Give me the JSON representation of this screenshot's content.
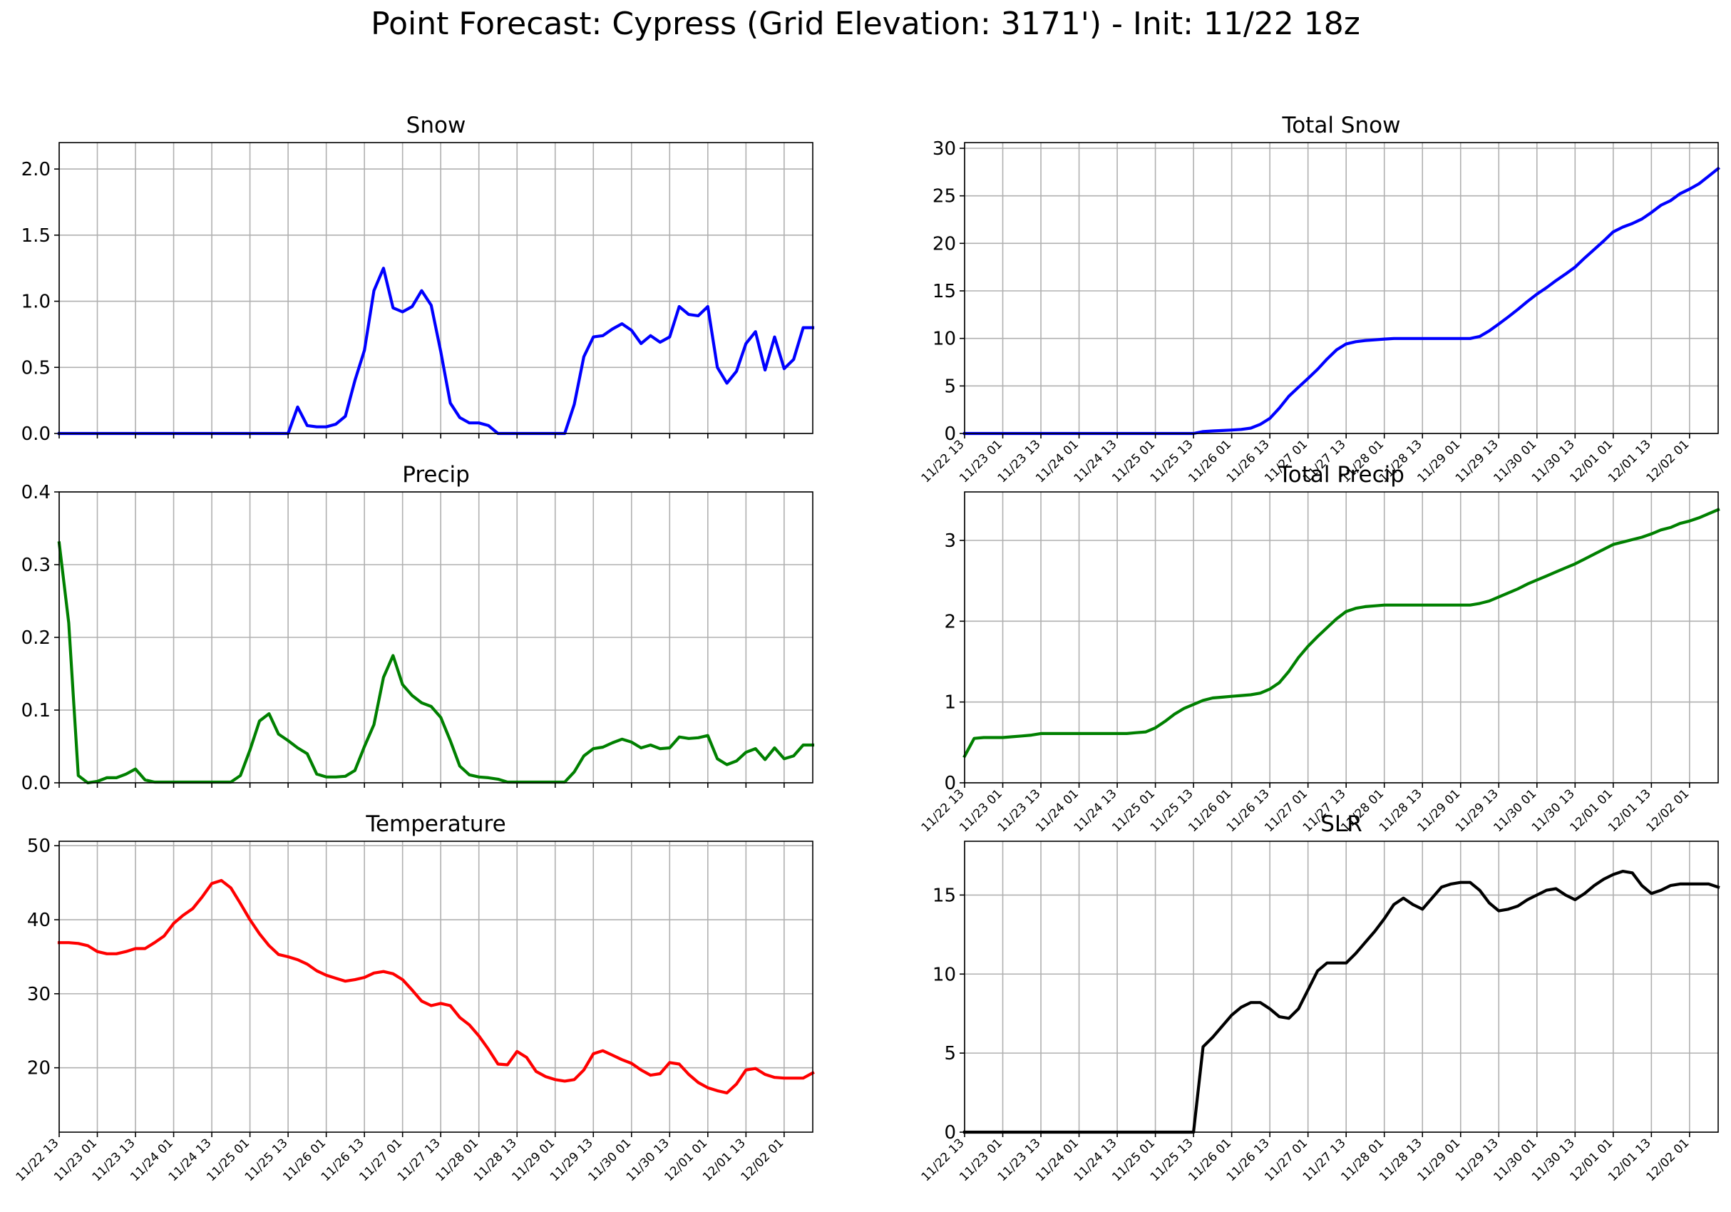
{
  "figure": {
    "title": "Point Forecast: Cypress (Grid Elevation: 3171') - Init: 11/22 18z"
  },
  "chart_data": [
    {
      "id": "snow",
      "type": "line",
      "title": "Snow",
      "color": "#0000ff",
      "ylim": [
        0,
        2.2
      ],
      "yticks": [
        0.0,
        0.5,
        1.0,
        1.5,
        2.0
      ],
      "ytick_labels": [
        "0.0",
        "0.5",
        "1.0",
        "1.5",
        "2.0"
      ],
      "xlim": [
        0,
        237
      ],
      "xticks": [
        0,
        12,
        24,
        36,
        48,
        60,
        72,
        84,
        96,
        108,
        120,
        132,
        144,
        156,
        168,
        180,
        192,
        204,
        216,
        228
      ],
      "xtick_labels": [],
      "grid": true,
      "x": [
        0,
        3,
        6,
        9,
        12,
        15,
        18,
        21,
        24,
        27,
        30,
        33,
        36,
        39,
        42,
        45,
        48,
        51,
        54,
        57,
        60,
        63,
        66,
        69,
        72,
        75,
        78,
        81,
        84,
        87,
        90,
        93,
        96,
        99,
        102,
        105,
        108,
        111,
        114,
        117,
        120,
        123,
        126,
        129,
        132,
        135,
        138,
        141,
        144,
        147,
        150,
        153,
        156,
        159,
        162,
        165,
        168,
        171,
        174,
        177,
        180,
        183,
        186,
        189,
        192,
        195,
        198,
        201,
        204,
        207,
        210,
        213,
        216,
        219,
        222,
        225,
        228,
        231,
        234,
        237
      ],
      "y": [
        0,
        0,
        0,
        0,
        0,
        0,
        0,
        0,
        0,
        0,
        0,
        0,
        0,
        0,
        0,
        0,
        0,
        0,
        0,
        0,
        0,
        0,
        0,
        0,
        0,
        0.2,
        0.06,
        0.05,
        0.05,
        0.07,
        0.13,
        0.4,
        0.63,
        1.08,
        1.25,
        0.95,
        0.92,
        0.96,
        1.08,
        0.97,
        0.62,
        0.23,
        0.12,
        0.08,
        0.08,
        0.06,
        0,
        0,
        0,
        0,
        0,
        0,
        0,
        0,
        0.22,
        0.58,
        0.73,
        0.74,
        0.79,
        0.83,
        0.78,
        0.68,
        0.74,
        0.69,
        0.73,
        0.96,
        0.9,
        0.89,
        0.96,
        0.5,
        0.38,
        0.47,
        0.68,
        0.77,
        0.48,
        0.73,
        0.49,
        0.56,
        0.8,
        0.8
      ]
    },
    {
      "id": "total-snow",
      "type": "line",
      "title": "Total Snow",
      "color": "#0000ff",
      "ylim": [
        0,
        30.6
      ],
      "yticks": [
        0,
        5,
        10,
        15,
        20,
        25,
        30
      ],
      "ytick_labels": [
        "0",
        "5",
        "10",
        "15",
        "20",
        "25",
        "30"
      ],
      "xlim": [
        0,
        237
      ],
      "xticks": [
        0,
        12,
        24,
        36,
        48,
        60,
        72,
        84,
        96,
        108,
        120,
        132,
        144,
        156,
        168,
        180,
        192,
        204,
        216,
        228
      ],
      "xtick_labels": [
        "11/22 13",
        "11/23 01",
        "11/23 13",
        "11/24 01",
        "11/24 13",
        "11/25 01",
        "11/25 13",
        "11/26 01",
        "11/26 13",
        "11/27 01",
        "11/27 13",
        "11/28 01",
        "11/28 13",
        "11/29 01",
        "11/29 13",
        "11/30 01",
        "11/30 13",
        "12/01 01",
        "12/01 13",
        "12/02 01"
      ],
      "grid": true,
      "x": [
        0,
        3,
        6,
        9,
        12,
        15,
        18,
        21,
        24,
        27,
        30,
        33,
        36,
        39,
        42,
        45,
        48,
        51,
        54,
        57,
        60,
        63,
        66,
        69,
        72,
        75,
        78,
        81,
        84,
        87,
        90,
        93,
        96,
        99,
        102,
        105,
        108,
        111,
        114,
        117,
        120,
        123,
        126,
        129,
        132,
        135,
        138,
        141,
        144,
        147,
        150,
        153,
        156,
        159,
        162,
        165,
        168,
        171,
        174,
        177,
        180,
        183,
        186,
        189,
        192,
        195,
        198,
        201,
        204,
        207,
        210,
        213,
        216,
        219,
        222,
        225,
        228,
        231,
        234,
        237
      ],
      "y": [
        0,
        0,
        0,
        0,
        0,
        0,
        0,
        0,
        0,
        0,
        0,
        0,
        0,
        0,
        0,
        0,
        0,
        0,
        0,
        0,
        0,
        0,
        0,
        0,
        0,
        0.2,
        0.26,
        0.31,
        0.36,
        0.43,
        0.56,
        0.96,
        1.59,
        2.67,
        3.92,
        4.87,
        5.79,
        6.75,
        7.83,
        8.8,
        9.42,
        9.65,
        9.77,
        9.85,
        9.93,
        9.99,
        9.99,
        9.99,
        9.99,
        9.99,
        9.99,
        9.99,
        9.99,
        9.99,
        10.21,
        10.79,
        11.52,
        12.26,
        13.05,
        13.88,
        14.66,
        15.34,
        16.08,
        16.77,
        17.5,
        18.46,
        19.36,
        20.25,
        21.21,
        21.71,
        22.09,
        22.56,
        23.24,
        24.01,
        24.49,
        25.22,
        25.71,
        26.27,
        27.07,
        27.87
      ]
    },
    {
      "id": "precip",
      "type": "line",
      "title": "Precip",
      "color": "#008000",
      "ylim": [
        0,
        0.4
      ],
      "yticks": [
        0.0,
        0.1,
        0.2,
        0.3,
        0.4
      ],
      "ytick_labels": [
        "0.0",
        "0.1",
        "0.2",
        "0.3",
        "0.4"
      ],
      "xlim": [
        0,
        237
      ],
      "xticks": [
        0,
        12,
        24,
        36,
        48,
        60,
        72,
        84,
        96,
        108,
        120,
        132,
        144,
        156,
        168,
        180,
        192,
        204,
        216,
        228
      ],
      "xtick_labels": [],
      "grid": true,
      "x": [
        0,
        3,
        6,
        9,
        12,
        15,
        18,
        21,
        24,
        27,
        30,
        33,
        36,
        39,
        42,
        45,
        48,
        51,
        54,
        57,
        60,
        63,
        66,
        69,
        72,
        75,
        78,
        81,
        84,
        87,
        90,
        93,
        96,
        99,
        102,
        105,
        108,
        111,
        114,
        117,
        120,
        123,
        126,
        129,
        132,
        135,
        138,
        141,
        144,
        147,
        150,
        153,
        156,
        159,
        162,
        165,
        168,
        171,
        174,
        177,
        180,
        183,
        186,
        189,
        192,
        195,
        198,
        201,
        204,
        207,
        210,
        213,
        216,
        219,
        222,
        225,
        228,
        231,
        234,
        237
      ],
      "y": [
        0.33,
        0.22,
        0.01,
        0.0,
        0.002,
        0.007,
        0.007,
        0.012,
        0.019,
        0.004,
        0.001,
        0.001,
        0.001,
        0.001,
        0.001,
        0.001,
        0.001,
        0.001,
        0.001,
        0.01,
        0.045,
        0.085,
        0.095,
        0.067,
        0.058,
        0.048,
        0.04,
        0.012,
        0.008,
        0.008,
        0.009,
        0.017,
        0.05,
        0.08,
        0.145,
        0.175,
        0.135,
        0.12,
        0.11,
        0.105,
        0.09,
        0.058,
        0.023,
        0.011,
        0.008,
        0.007,
        0.005,
        0.001,
        0.001,
        0.001,
        0.001,
        0.001,
        0.001,
        0.001,
        0.015,
        0.037,
        0.047,
        0.049,
        0.055,
        0.06,
        0.056,
        0.048,
        0.052,
        0.047,
        0.048,
        0.063,
        0.061,
        0.062,
        0.065,
        0.033,
        0.025,
        0.03,
        0.042,
        0.047,
        0.032,
        0.048,
        0.033,
        0.037,
        0.052,
        0.052
      ]
    },
    {
      "id": "total-precip",
      "type": "line",
      "title": "Total Precip",
      "color": "#008000",
      "ylim": [
        0,
        3.6
      ],
      "yticks": [
        0,
        1,
        2,
        3
      ],
      "ytick_labels": [
        "0",
        "1",
        "2",
        "3"
      ],
      "xlim": [
        0,
        237
      ],
      "xticks": [
        0,
        12,
        24,
        36,
        48,
        60,
        72,
        84,
        96,
        108,
        120,
        132,
        144,
        156,
        168,
        180,
        192,
        204,
        216,
        228
      ],
      "xtick_labels": [
        "11/22 13",
        "11/23 01",
        "11/23 13",
        "11/24 01",
        "11/24 13",
        "11/25 01",
        "11/25 13",
        "11/26 01",
        "11/26 13",
        "11/27 01",
        "11/27 13",
        "11/28 01",
        "11/28 13",
        "11/29 01",
        "11/29 13",
        "11/30 01",
        "11/30 13",
        "12/01 01",
        "12/01 13",
        "12/02 01"
      ],
      "grid": true,
      "x": [
        0,
        3,
        6,
        9,
        12,
        15,
        18,
        21,
        24,
        27,
        30,
        33,
        36,
        39,
        42,
        45,
        48,
        51,
        54,
        57,
        60,
        63,
        66,
        69,
        72,
        75,
        78,
        81,
        84,
        87,
        90,
        93,
        96,
        99,
        102,
        105,
        108,
        111,
        114,
        117,
        120,
        123,
        126,
        129,
        132,
        135,
        138,
        141,
        144,
        147,
        150,
        153,
        156,
        159,
        162,
        165,
        168,
        171,
        174,
        177,
        180,
        183,
        186,
        189,
        192,
        195,
        198,
        201,
        204,
        207,
        210,
        213,
        216,
        219,
        222,
        225,
        228,
        231,
        234,
        237
      ],
      "y": [
        0.33,
        0.55,
        0.56,
        0.56,
        0.56,
        0.57,
        0.58,
        0.59,
        0.61,
        0.61,
        0.61,
        0.61,
        0.61,
        0.61,
        0.61,
        0.61,
        0.61,
        0.61,
        0.62,
        0.63,
        0.68,
        0.76,
        0.85,
        0.92,
        0.97,
        1.02,
        1.05,
        1.06,
        1.07,
        1.08,
        1.09,
        1.11,
        1.16,
        1.24,
        1.38,
        1.55,
        1.69,
        1.81,
        1.92,
        2.03,
        2.12,
        2.16,
        2.18,
        2.19,
        2.2,
        2.2,
        2.2,
        2.2,
        2.2,
        2.2,
        2.2,
        2.2,
        2.2,
        2.2,
        2.22,
        2.25,
        2.3,
        2.35,
        2.4,
        2.46,
        2.51,
        2.56,
        2.61,
        2.66,
        2.71,
        2.77,
        2.83,
        2.89,
        2.95,
        2.98,
        3.01,
        3.04,
        3.08,
        3.13,
        3.16,
        3.21,
        3.24,
        3.28,
        3.33,
        3.38
      ]
    },
    {
      "id": "temperature",
      "type": "line",
      "title": "Temperature",
      "color": "#ff0000",
      "ylim": [
        11.3,
        50.6
      ],
      "yticks": [
        20,
        30,
        40,
        50
      ],
      "ytick_labels": [
        "20",
        "30",
        "40",
        "50"
      ],
      "xlim": [
        0,
        237
      ],
      "xticks": [
        0,
        12,
        24,
        36,
        48,
        60,
        72,
        84,
        96,
        108,
        120,
        132,
        144,
        156,
        168,
        180,
        192,
        204,
        216,
        228
      ],
      "xtick_labels": [
        "11/22 13",
        "11/23 01",
        "11/23 13",
        "11/24 01",
        "11/24 13",
        "11/25 01",
        "11/25 13",
        "11/26 01",
        "11/26 13",
        "11/27 01",
        "11/27 13",
        "11/28 01",
        "11/28 13",
        "11/29 01",
        "11/29 13",
        "11/30 01",
        "11/30 13",
        "12/01 01",
        "12/01 13",
        "12/02 01"
      ],
      "grid": true,
      "x": [
        0,
        3,
        6,
        9,
        12,
        15,
        18,
        21,
        24,
        27,
        30,
        33,
        36,
        39,
        42,
        45,
        48,
        51,
        54,
        57,
        60,
        63,
        66,
        69,
        72,
        75,
        78,
        81,
        84,
        87,
        90,
        93,
        96,
        99,
        102,
        105,
        108,
        111,
        114,
        117,
        120,
        123,
        126,
        129,
        132,
        135,
        138,
        141,
        144,
        147,
        150,
        153,
        156,
        159,
        162,
        165,
        168,
        171,
        174,
        177,
        180,
        183,
        186,
        189,
        192,
        195,
        198,
        201,
        204,
        207,
        210,
        213,
        216,
        219,
        222,
        225,
        228,
        231,
        234,
        237
      ],
      "y": [
        36.9,
        36.9,
        36.8,
        36.5,
        35.7,
        35.4,
        35.4,
        35.7,
        36.1,
        36.1,
        36.9,
        37.8,
        39.5,
        40.6,
        41.5,
        43.1,
        44.9,
        45.3,
        44.3,
        42.2,
        40.0,
        38.1,
        36.5,
        35.3,
        35.0,
        34.6,
        34.0,
        33.1,
        32.5,
        32.1,
        31.7,
        31.9,
        32.2,
        32.8,
        33.0,
        32.7,
        31.9,
        30.5,
        29.0,
        28.4,
        28.7,
        28.4,
        26.8,
        25.8,
        24.3,
        22.5,
        20.5,
        20.4,
        22.2,
        21.4,
        19.5,
        18.8,
        18.4,
        18.2,
        18.4,
        19.7,
        21.9,
        22.3,
        21.7,
        21.1,
        20.6,
        19.7,
        19.0,
        19.2,
        20.7,
        20.5,
        19.1,
        18.0,
        17.3,
        16.9,
        16.6,
        17.8,
        19.7,
        19.9,
        19.1,
        18.7,
        18.6,
        18.6,
        18.6,
        19.3
      ]
    },
    {
      "id": "slr",
      "type": "line",
      "title": "SLR",
      "color": "#000000",
      "ylim": [
        0,
        18.4
      ],
      "yticks": [
        0,
        5,
        10,
        15
      ],
      "ytick_labels": [
        "0",
        "5",
        "10",
        "15"
      ],
      "xlim": [
        0,
        237
      ],
      "xticks": [
        0,
        12,
        24,
        36,
        48,
        60,
        72,
        84,
        96,
        108,
        120,
        132,
        144,
        156,
        168,
        180,
        192,
        204,
        216,
        228
      ],
      "xtick_labels": [
        "11/22 13",
        "11/23 01",
        "11/23 13",
        "11/24 01",
        "11/24 13",
        "11/25 01",
        "11/25 13",
        "11/26 01",
        "11/26 13",
        "11/27 01",
        "11/27 13",
        "11/28 01",
        "11/28 13",
        "11/29 01",
        "11/29 13",
        "11/30 01",
        "11/30 13",
        "12/01 01",
        "12/01 13",
        "12/02 01"
      ],
      "grid": true,
      "x": [
        0,
        3,
        6,
        9,
        12,
        15,
        18,
        21,
        24,
        27,
        30,
        33,
        36,
        39,
        42,
        45,
        48,
        51,
        54,
        57,
        60,
        63,
        66,
        69,
        72,
        75,
        78,
        81,
        84,
        87,
        90,
        93,
        96,
        99,
        102,
        105,
        108,
        111,
        114,
        117,
        120,
        123,
        126,
        129,
        132,
        135,
        138,
        141,
        144,
        147,
        150,
        153,
        156,
        159,
        162,
        165,
        168,
        171,
        174,
        177,
        180,
        183,
        186,
        189,
        192,
        195,
        198,
        201,
        204,
        207,
        210,
        213,
        216,
        219,
        222,
        225,
        228,
        231,
        234,
        237
      ],
      "y": [
        0,
        0,
        0,
        0,
        0,
        0,
        0,
        0,
        0,
        0,
        0,
        0,
        0,
        0,
        0,
        0,
        0,
        0,
        0,
        0,
        0,
        0,
        0,
        0,
        0,
        5.4,
        6.0,
        6.7,
        7.4,
        7.9,
        8.2,
        8.2,
        7.8,
        7.3,
        7.2,
        7.8,
        9.0,
        10.2,
        10.7,
        10.7,
        10.7,
        11.3,
        12.0,
        12.7,
        13.5,
        14.4,
        14.8,
        14.4,
        14.1,
        14.8,
        15.5,
        15.7,
        15.8,
        15.8,
        15.3,
        14.5,
        14.0,
        14.1,
        14.3,
        14.7,
        15.0,
        15.3,
        15.4,
        15.0,
        14.7,
        15.1,
        15.6,
        16.0,
        16.3,
        16.5,
        16.4,
        15.6,
        15.1,
        15.3,
        15.6,
        15.7,
        15.7,
        15.7,
        15.7,
        15.5
      ]
    }
  ]
}
